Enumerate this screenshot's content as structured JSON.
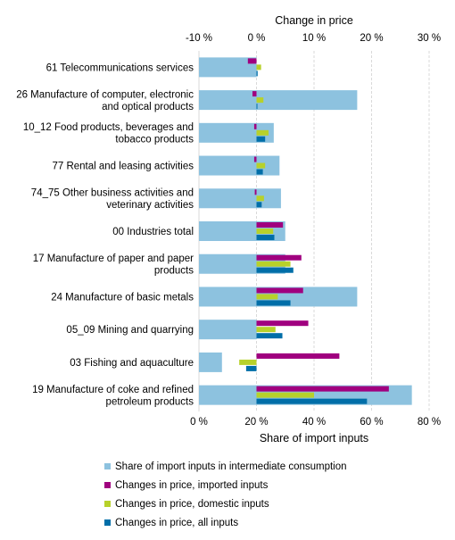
{
  "chart_data": {
    "type": "bar",
    "top_axis": {
      "title": "Change in price",
      "range": [
        -10,
        30
      ],
      "ticks": [
        -10,
        0,
        10,
        20,
        30
      ],
      "tick_labels": [
        "-10 %",
        "0 %",
        "10 %",
        "20 %",
        "30 %"
      ]
    },
    "bottom_axis": {
      "title": "Share of import inputs",
      "range": [
        0,
        80
      ],
      "ticks": [
        0,
        20,
        40,
        60,
        80
      ],
      "tick_labels": [
        "0 %",
        "20 %",
        "40 %",
        "60 %",
        "80 %"
      ]
    },
    "grid": true,
    "legend_position": "bottom",
    "categories": [
      [
        "61 Telecommunications services"
      ],
      [
        "26 Manufacture of computer, electronic",
        "and optical products"
      ],
      [
        "10_12 Food products, beverages and",
        "tobacco products"
      ],
      [
        "77 Rental and leasing activities"
      ],
      [
        "74_75 Other business activities and",
        "veterinary activities"
      ],
      [
        "00 Industries total"
      ],
      [
        "17 Manufacture of paper and paper",
        "products"
      ],
      [
        "24 Manufacture of basic metals"
      ],
      [
        "05_09 Mining and quarrying"
      ],
      [
        "03 Fishing and aquaculture"
      ],
      [
        "19 Manufacture of coke and refined",
        "petroleum products"
      ]
    ],
    "series": [
      {
        "name": "Share of import inputs in intermediate consumption",
        "axis": "bottom",
        "color": "#8dc2df",
        "values": [
          20,
          55,
          26,
          28,
          28.5,
          30,
          30,
          55,
          20,
          8,
          74
        ]
      },
      {
        "name": "Changes in price, imported inputs",
        "axis": "top",
        "color": "#a0007f",
        "values": [
          -1.5,
          -0.7,
          -0.4,
          -0.4,
          -0.3,
          4.6,
          7.8,
          8.1,
          9.0,
          14.4,
          23.0
        ]
      },
      {
        "name": "Changes in price, domestic inputs",
        "axis": "top",
        "color": "#b7d12b",
        "values": [
          0.8,
          1.2,
          2.1,
          1.5,
          1.3,
          2.9,
          5.9,
          3.7,
          3.3,
          -3.0,
          10.0
        ]
      },
      {
        "name": "Changes in price, all inputs",
        "axis": "top",
        "color": "#006ea8",
        "values": [
          0.2,
          0.1,
          1.5,
          1.1,
          0.9,
          3.1,
          6.4,
          5.9,
          4.5,
          -1.8,
          19.2
        ]
      }
    ]
  }
}
